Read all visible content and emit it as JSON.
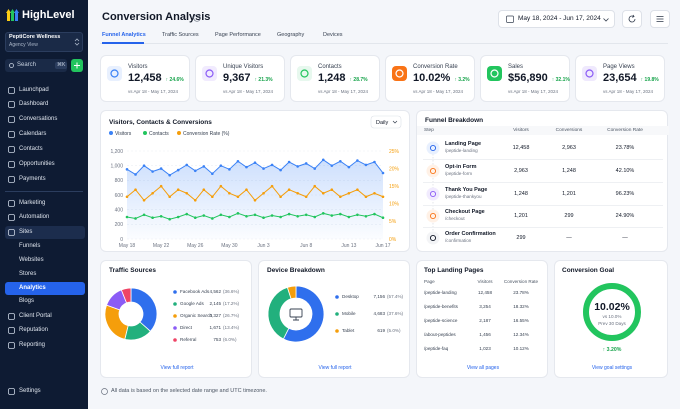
{
  "sidebar": {
    "logo": "HighLevel",
    "account": {
      "name": "PeptiCore Wellness",
      "role": "Agency View"
    },
    "search": "Search",
    "shortcut": "⌘K",
    "menu": [
      "Launchpad",
      "Dashboard",
      "Conversations",
      "Calendars",
      "Contacts",
      "Opportunities",
      "Payments"
    ],
    "menu2": [
      "Marketing",
      "Automation",
      "Sites"
    ],
    "submenu": [
      "Funnels",
      "Websites",
      "Stores",
      "Analytics",
      "Blogs"
    ],
    "menu3": [
      "Client Portal",
      "Reputation",
      "Reporting"
    ],
    "settings": "Settings"
  },
  "header": {
    "title": "Conversion Analysis",
    "date_range": "May 18, 2024 - Jun 17, 2024",
    "tabs": [
      "Funnel Analytics",
      "Traffic Sources",
      "Page Performance",
      "Geography",
      "Devices"
    ]
  },
  "kpis": [
    {
      "label": "Visitors",
      "value": "12,458",
      "change": "↑ 24.6%",
      "compare": "vs Apr 18 - May 17, 2024"
    },
    {
      "label": "Unique Visitors",
      "value": "9,367",
      "change": "↑ 21.3%",
      "compare": "vs Apr 18 - May 17, 2024"
    },
    {
      "label": "Contacts",
      "value": "1,248",
      "change": "↑ 28.7%",
      "compare": "vs Apr 18 - May 17, 2024"
    },
    {
      "label": "Conversion Rate",
      "value": "10.02%",
      "change": "↑ 3.2%",
      "compare": "vs Apr 18 - May 17, 2024"
    },
    {
      "label": "Sales",
      "value": "$56,890",
      "change": "↑ 32.1%",
      "compare": "vs Apr 18 - May 17, 2024"
    },
    {
      "label": "Page Views",
      "value": "23,654",
      "change": "↑ 19.8%",
      "compare": "vs Apr 18 - May 17, 2024"
    }
  ],
  "chart_data": [
    {
      "type": "line",
      "title": "Visitors, Contacts & Conversions",
      "control": "Daily",
      "categories": [
        "May 18",
        null,
        null,
        null,
        "May 22",
        null,
        null,
        null,
        "May 26",
        null,
        null,
        null,
        "May 30",
        null,
        null,
        null,
        "Jun 3",
        null,
        null,
        null,
        null,
        "Jun 8",
        null,
        null,
        null,
        null,
        "Jun 13",
        null,
        null,
        null,
        "Jun 17"
      ],
      "series": [
        {
          "name": "Visitors",
          "color": "#3b82f6",
          "values": [
            950,
            880,
            1000,
            920,
            960,
            870,
            940,
            1010,
            930,
            990,
            890,
            1000,
            950,
            1060,
            980,
            1040,
            960,
            1010,
            940,
            1050,
            990,
            1030,
            960,
            1080,
            1000,
            1060,
            980,
            1070,
            1010,
            1050,
            900
          ]
        },
        {
          "name": "Contacts",
          "color": "#22c55e",
          "values": [
            300,
            280,
            330,
            290,
            310,
            270,
            300,
            340,
            290,
            320,
            280,
            330,
            300,
            350,
            310,
            330,
            290,
            320,
            300,
            340,
            310,
            330,
            300,
            350,
            320,
            340,
            300,
            330,
            310,
            340,
            290
          ]
        },
        {
          "name": "Conversion Rate (%)",
          "color": "#f59e0b",
          "axis": "y2",
          "values": [
            12,
            14,
            11,
            13,
            15,
            12,
            14,
            13,
            11,
            14,
            12,
            15,
            13,
            12,
            14,
            11,
            13,
            15,
            12,
            14,
            13,
            12,
            15,
            13,
            14,
            12,
            13,
            14,
            12,
            13,
            12
          ]
        }
      ],
      "ylim": [
        0,
        1200
      ],
      "yticks": [
        0,
        200,
        400,
        600,
        800,
        {
          "value": 1000,
          "label": "1,000"
        },
        {
          "value": 1200,
          "label": "1,200"
        }
      ],
      "y2lim": [
        0,
        25
      ],
      "y2ticks": [
        {
          "value": 0,
          "label": "0%"
        },
        {
          "value": 5,
          "label": "5%"
        },
        {
          "value": 10,
          "label": "10%"
        },
        {
          "value": 15,
          "label": "15%"
        },
        {
          "value": 20,
          "label": "20%"
        },
        {
          "value": 25,
          "label": "25%"
        }
      ],
      "grid": true
    },
    {
      "type": "pie",
      "title": "Traffic Sources",
      "categories": [
        "Facebook Ads",
        "Google Ads",
        "Organic Search",
        "Direct",
        "Referral"
      ],
      "values": [
        4562,
        2145,
        3327,
        1671,
        753
      ],
      "value_labels": [
        "4,562",
        "2,145",
        "3,327",
        "1,671",
        "753"
      ],
      "percent_labels": [
        "(36.6%)",
        "(17.2%)",
        "(26.7%)",
        "(13.4%)",
        "(6.0%)"
      ],
      "colors": [
        "#2f6fed",
        "#22b07d",
        "#f59e0b",
        "#8b5cf6",
        "#ef4466"
      ],
      "link": "View full report"
    },
    {
      "type": "pie",
      "title": "Device Breakdown",
      "categories": [
        "Desktop",
        "Mobile",
        "Tablet"
      ],
      "values": [
        7156,
        4683,
        619
      ],
      "value_labels": [
        "7,156",
        "4,683",
        "619"
      ],
      "percent_labels": [
        "(57.4%)",
        "(37.6%)",
        "(5.0%)"
      ],
      "colors": [
        "#2f6fed",
        "#22b07d",
        "#f59e0b"
      ],
      "link": "View full report"
    }
  ],
  "funnel": {
    "title": "Funnel Breakdown",
    "columns": [
      "Step",
      "Visitors",
      "Conversions",
      "Conversion Rate"
    ],
    "rows": [
      [
        "Landing Page",
        "/peptide-landing",
        "12,458",
        "2,963",
        "23.78%"
      ],
      [
        "Opt-in Form",
        "/peptide-form",
        "2,963",
        "1,248",
        "42.10%"
      ],
      [
        "Thank You Page",
        "/peptide-thankyou",
        "1,248",
        "1,201",
        "96.23%"
      ],
      [
        "Checkout Page",
        "/checkout",
        "1,201",
        "299",
        "24.90%"
      ],
      [
        "Order Confirmation",
        "/confirmation",
        "299",
        "—",
        "—"
      ]
    ]
  },
  "landing_pages": {
    "title": "Top Landing Pages",
    "columns": [
      "Page",
      "Visitors",
      "Conversion Rate"
    ],
    "rows": [
      [
        "/peptide-landing",
        "12,458",
        "23.78%"
      ],
      [
        "/peptide-benefits",
        "3,254",
        "18.32%"
      ],
      [
        "/peptide-science",
        "2,187",
        "16.55%"
      ],
      [
        "/about-peptides",
        "1,456",
        "12.34%"
      ],
      [
        "/peptide-faq",
        "1,023",
        "10.12%"
      ]
    ],
    "link": "View all pages"
  },
  "goal": {
    "title": "Conversion Goal",
    "value": "10.02%",
    "target": "vs 10.0%",
    "period": "Prev 30 Days",
    "change": "↑ 3.20%",
    "link": "View goal settings"
  },
  "footer": "All data is based on the selected date range and UTC timezone."
}
